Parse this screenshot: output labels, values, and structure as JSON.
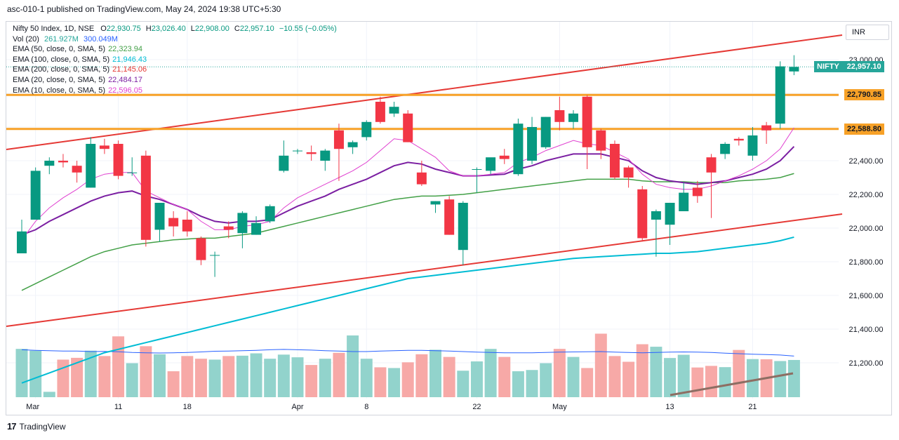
{
  "header": {
    "publish_line": "asc-010-1 published on TradingView.com, May 24, 2024 19:38 UTC+5:30"
  },
  "legend": {
    "symbol": "Nifty 50 Index, 1D, NSE",
    "ohlc": [
      {
        "k": "O",
        "v": "22,930.75"
      },
      {
        "k": "H",
        "v": "23,026.40"
      },
      {
        "k": "L",
        "v": "22,908.00"
      },
      {
        "k": "C",
        "v": "22,957.10"
      }
    ],
    "change": "−10.55 (−0.05%)",
    "vol_label": "Vol (20)",
    "vol_value": "261.927M",
    "vol_ma": "300.049M",
    "emas": [
      {
        "label": "EMA (50, close, 0, SMA, 5)",
        "value": "22,323.94",
        "color": "#43a047"
      },
      {
        "label": "EMA (100, close, 0, SMA, 5)",
        "value": "21,946.43",
        "color": "#00bcd4"
      },
      {
        "label": "EMA (200, close, 0, SMA, 5)",
        "value": "21,145.06",
        "color": "#e53935"
      },
      {
        "label": "EMA (20, close, 0, SMA, 5)",
        "value": "22,484.17",
        "color": "#7b1fa2"
      },
      {
        "label": "EMA (10, close, 0, SMA, 5)",
        "value": "22,596.05",
        "color": "#e040d0"
      }
    ]
  },
  "currency": "INR",
  "price_tags": [
    {
      "label": "NIFTY",
      "value": "22,957.10",
      "price": 22957.1,
      "color": "#26a69a"
    },
    {
      "label": "",
      "value": "22,790.85",
      "price": 22790.85,
      "color": "#f7a127"
    },
    {
      "label": "",
      "value": "22,588.80",
      "price": 22588.8,
      "color": "#f7a127"
    }
  ],
  "footer": {
    "brand": "TradingView",
    "logo_text": "17"
  },
  "chart_data": {
    "type": "candlestick",
    "y_ticks": [
      21200,
      21400,
      21600,
      21800,
      22000,
      22200,
      22400,
      22600,
      22800,
      23000
    ],
    "ylim": [
      21030,
      23150
    ],
    "x_tick_labels": [
      {
        "label": "Mar",
        "index": 1
      },
      {
        "label": "11",
        "index": 7
      },
      {
        "label": "18",
        "index": 12
      },
      {
        "label": "Apr",
        "index": 20
      },
      {
        "label": "8",
        "index": 25
      },
      {
        "label": "22",
        "index": 33
      },
      {
        "label": "May",
        "index": 39
      },
      {
        "label": "13",
        "index": 47
      },
      {
        "label": "21",
        "index": 53
      }
    ],
    "candles": [
      [
        21850,
        22050,
        21850,
        21980
      ],
      [
        22050,
        22360,
        22050,
        22340
      ],
      [
        22370,
        22420,
        22320,
        22400
      ],
      [
        22400,
        22440,
        22360,
        22390
      ],
      [
        22370,
        22400,
        22270,
        22330
      ],
      [
        22240,
        22540,
        22240,
        22500
      ],
      [
        22490,
        22530,
        22440,
        22470
      ],
      [
        22500,
        22520,
        22290,
        22310
      ],
      [
        22330,
        22420,
        22310,
        22330
      ],
      [
        22430,
        22460,
        21890,
        21930
      ],
      [
        21990,
        22150,
        21920,
        22150
      ],
      [
        22060,
        22100,
        21950,
        22010
      ],
      [
        22050,
        22100,
        21950,
        21980
      ],
      [
        21940,
        21950,
        21780,
        21810
      ],
      [
        21840,
        21860,
        21710,
        21840
      ],
      [
        22010,
        22040,
        21940,
        21990
      ],
      [
        21970,
        22100,
        21880,
        22090
      ],
      [
        21960,
        22070,
        21960,
        22030
      ],
      [
        22040,
        22140,
        22030,
        22130
      ],
      [
        22340,
        22520,
        22330,
        22430
      ],
      [
        22460,
        22470,
        22440,
        22460
      ],
      [
        22450,
        22490,
        22400,
        22440
      ],
      [
        22400,
        22470,
        22340,
        22460
      ],
      [
        22580,
        22620,
        22280,
        22470
      ],
      [
        22480,
        22520,
        22440,
        22510
      ],
      [
        22540,
        22640,
        22520,
        22630
      ],
      [
        22750,
        22780,
        22620,
        22630
      ],
      [
        22680,
        22750,
        22660,
        22720
      ],
      [
        22680,
        22700,
        22510,
        22510
      ],
      [
        22330,
        22400,
        22250,
        22260
      ],
      [
        22140,
        22160,
        22090,
        22160
      ],
      [
        22170,
        22190,
        21960,
        21960
      ],
      [
        21870,
        22160,
        21780,
        22150
      ],
      [
        22350,
        22360,
        22210,
        22350
      ],
      [
        22340,
        22400,
        22320,
        22420
      ],
      [
        22430,
        22470,
        22380,
        22410
      ],
      [
        22320,
        22650,
        22310,
        22620
      ],
      [
        22400,
        22660,
        22380,
        22600
      ],
      [
        22480,
        22660,
        22470,
        22660
      ],
      [
        22700,
        22780,
        22580,
        22630
      ],
      [
        22630,
        22700,
        22590,
        22680
      ],
      [
        22780,
        22790,
        22350,
        22480
      ],
      [
        22580,
        22590,
        22410,
        22460
      ],
      [
        22500,
        22520,
        22290,
        22300
      ],
      [
        22360,
        22370,
        22240,
        22300
      ],
      [
        22230,
        22250,
        21920,
        21940
      ],
      [
        22050,
        22110,
        21830,
        22100
      ],
      [
        22020,
        22130,
        21900,
        22150
      ],
      [
        22100,
        22270,
        22100,
        22210
      ],
      [
        22240,
        22280,
        22150,
        22190
      ],
      [
        22420,
        22440,
        22060,
        22330
      ],
      [
        22440,
        22510,
        22410,
        22500
      ],
      [
        22530,
        22540,
        22490,
        22520
      ],
      [
        22430,
        22600,
        22400,
        22550
      ],
      [
        22610,
        22630,
        22500,
        22580
      ],
      [
        22620,
        22990,
        22590,
        22960
      ],
      [
        22930,
        23026.4,
        22908,
        22957.1
      ]
    ],
    "volume_ylim": [
      0,
      600
    ],
    "volume": [
      270,
      260,
      30,
      210,
      220,
      260,
      230,
      340,
      190,
      285,
      240,
      145,
      230,
      215,
      210,
      230,
      232,
      245,
      215,
      238,
      223,
      180,
      215,
      248,
      345,
      215,
      167,
      163,
      195,
      240,
      265,
      225,
      148,
      200,
      270,
      225,
      145,
      152,
      190,
      270,
      225,
      163,
      355,
      230,
      198,
      296,
      282,
      219,
      237,
      166,
      175,
      168,
      264,
      213,
      212,
      202,
      208
    ],
    "volume_ma": [
      265,
      262,
      260,
      258,
      258,
      255,
      256,
      254,
      250,
      248,
      247,
      248,
      250,
      253,
      257,
      258,
      260,
      262,
      265,
      267,
      265,
      263,
      260,
      258,
      255,
      255,
      258,
      260,
      262,
      262,
      260,
      258,
      255,
      252,
      250,
      248,
      248,
      248,
      250,
      252,
      253,
      254,
      255,
      252,
      250,
      248,
      250,
      252,
      253,
      252,
      250,
      246,
      243,
      240,
      238,
      236,
      230
    ],
    "ema10": [
      21930,
      22040,
      22120,
      22180,
      22230,
      22290,
      22320,
      22330,
      22330,
      22220,
      22180,
      22140,
      22110,
      22040,
      21990,
      21990,
      22010,
      22020,
      22040,
      22120,
      22180,
      22220,
      22260,
      22300,
      22340,
      22390,
      22460,
      22530,
      22520,
      22470,
      22420,
      22340,
      22310,
      22310,
      22320,
      22330,
      22390,
      22420,
      22460,
      22490,
      22520,
      22500,
      22490,
      22450,
      22410,
      22320,
      22260,
      22240,
      22230,
      22230,
      22250,
      22280,
      22310,
      22350,
      22400,
      22470,
      22596
    ],
    "ema20": [
      21960,
      21990,
      22040,
      22080,
      22120,
      22160,
      22190,
      22210,
      22220,
      22190,
      22170,
      22140,
      22110,
      22070,
      22040,
      22030,
      22040,
      22040,
      22050,
      22090,
      22130,
      22160,
      22190,
      22230,
      22260,
      22290,
      22330,
      22370,
      22390,
      22380,
      22350,
      22330,
      22310,
      22310,
      22315,
      22320,
      22350,
      22370,
      22400,
      22420,
      22440,
      22440,
      22440,
      22420,
      22400,
      22340,
      22300,
      22280,
      22270,
      22260,
      22270,
      22280,
      22300,
      22320,
      22350,
      22400,
      22484
    ],
    "ema50": [
      21630,
      21670,
      21710,
      21750,
      21790,
      21830,
      21860,
      21880,
      21900,
      21910,
      21920,
      21930,
      21935,
      21940,
      21940,
      21950,
      21960,
      21970,
      21990,
      22010,
      22030,
      22050,
      22070,
      22090,
      22110,
      22130,
      22150,
      22170,
      22180,
      22190,
      22190,
      22195,
      22200,
      22210,
      22220,
      22230,
      22240,
      22250,
      22260,
      22270,
      22280,
      22290,
      22290,
      22290,
      22290,
      22280,
      22275,
      22275,
      22275,
      22270,
      22270,
      22270,
      22280,
      22285,
      22290,
      22300,
      22324
    ],
    "ema100": [
      21080,
      21110,
      21140,
      21170,
      21200,
      21230,
      21260,
      21280,
      21300,
      21320,
      21340,
      21360,
      21380,
      21400,
      21420,
      21440,
      21460,
      21480,
      21500,
      21520,
      21540,
      21560,
      21580,
      21600,
      21620,
      21640,
      21660,
      21680,
      21700,
      21710,
      21720,
      21730,
      21740,
      21750,
      21760,
      21770,
      21780,
      21790,
      21800,
      21810,
      21820,
      21825,
      21830,
      21835,
      21840,
      21845,
      21850,
      21850,
      21855,
      21860,
      21870,
      21880,
      21890,
      21900,
      21910,
      21925,
      21946
    ]
  }
}
